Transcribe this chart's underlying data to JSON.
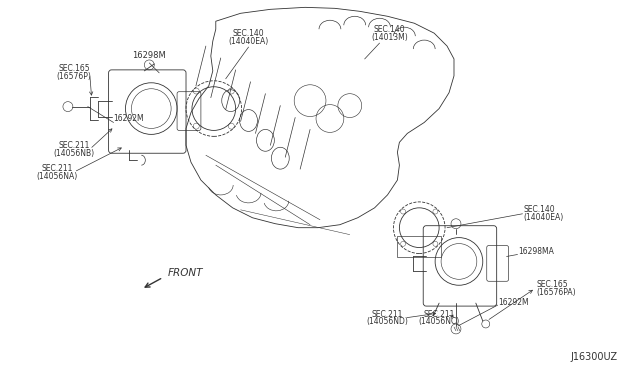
{
  "bg_color": "#ffffff",
  "line_color": "#333333",
  "fig_width": 6.4,
  "fig_height": 3.72,
  "dpi": 100,
  "title_code": "J16300UZ",
  "labels": {
    "top_part": "16298M",
    "top_sec165": "SEC.165",
    "top_sec165b": "(16576P)",
    "top_16292M": "16292M",
    "top_sec211_nb": "SEC.211",
    "top_sec211_nb2": "(14056NB)",
    "top_sec211_na": "SEC.211",
    "top_sec211_na2": "(14056NA)",
    "intake_sec140_left": "SEC.140",
    "intake_sec140_left2": "(14040EA)",
    "intake_sec140_top": "SEC.140",
    "intake_sec140_top2": "(14013M)",
    "right_sec140": "SEC.140",
    "right_sec140b": "(14040EA)",
    "right_part": "16298MA",
    "right_sec165": "SEC.165",
    "right_sec165b": "(16576PA)",
    "right_16292M": "16292M",
    "right_sec211_nd": "SEC.211",
    "right_sec211_nd2": "(14056ND)",
    "right_sec211_nc": "SEC.211",
    "right_sec211_nc2": "(14056NC)",
    "front_label": "FRONT"
  },
  "font_size": 5.5,
  "font_size_part": 6.0,
  "font_size_code": 7.0
}
